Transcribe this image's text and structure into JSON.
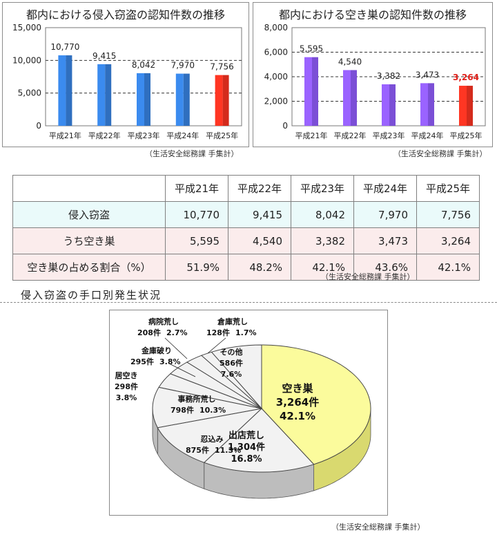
{
  "chart_data": [
    {
      "type": "bar",
      "title": "都内における侵入窃盗の認知件数の推移",
      "categories": [
        "平成21年",
        "平成22年",
        "平成23年",
        "平成24年",
        "平成25年"
      ],
      "values": [
        10770,
        9415,
        8042,
        7970,
        7756
      ],
      "value_labels": [
        "10,770",
        "9,415",
        "8,042",
        "7,970",
        "7,756"
      ],
      "ylim": [
        0,
        15000
      ],
      "yticks": [
        "0",
        "5,000",
        "10,000",
        "15,000"
      ],
      "ytick_values": [
        0,
        5000,
        10000,
        15000
      ],
      "colors": [
        "#2f6fbf",
        "#2f6fbf",
        "#2f6fbf",
        "#2f6fbf",
        "#d42b1c"
      ],
      "grid": true,
      "source": "（生活安全総務課 手集計）"
    },
    {
      "type": "bar",
      "title": "都内における空き巣の認知件数の推移",
      "categories": [
        "平成21年",
        "平成22年",
        "平成23年",
        "平成24年",
        "平成25年"
      ],
      "values": [
        5595,
        4540,
        3382,
        3473,
        3264
      ],
      "value_labels": [
        "5,595",
        "4,540",
        "3,382",
        "3,473",
        "3,264"
      ],
      "ylim": [
        0,
        8000
      ],
      "yticks": [
        "0",
        "2,000",
        "4,000",
        "6,000",
        "8,000"
      ],
      "ytick_values": [
        0,
        2000,
        4000,
        6000,
        8000
      ],
      "colors": [
        "#7b4fd6",
        "#7b4fd6",
        "#7b4fd6",
        "#7b4fd6",
        "#d42b1c"
      ],
      "highlight_label_color": "#e0201a",
      "grid": true,
      "source": "（生活安全総務課 手集計）"
    },
    {
      "type": "table",
      "columns": [
        "",
        "平成21年",
        "平成22年",
        "平成23年",
        "平成24年",
        "平成25年"
      ],
      "rows": [
        {
          "label": "侵入窃盗",
          "cells": [
            "10,770",
            "9,415",
            "8,042",
            "7,970",
            "7,756"
          ]
        },
        {
          "label": "うち空き巣",
          "cells": [
            "5,595",
            "4,540",
            "3,382",
            "3,473",
            "3,264"
          ]
        },
        {
          "label": "空き巣の占める割合（%）",
          "cells": [
            "51.9%",
            "48.2%",
            "42.1%",
            "43.6%",
            "42.1%"
          ]
        }
      ],
      "source": "（生活安全総務課 手集計）"
    },
    {
      "type": "pie",
      "title": "侵入窃盗の手口別発生状況",
      "slices": [
        {
          "name": "空き巣",
          "count": "3,264件",
          "pct": "42.1%",
          "value": 42.1,
          "color": "#fbfb9c"
        },
        {
          "name": "出店荒し",
          "count": "1,304件",
          "pct": "16.8%",
          "value": 16.8,
          "color": "#f2f2f2"
        },
        {
          "name": "忍込み",
          "count": "875件",
          "pct": "11.3%",
          "value": 11.3,
          "color": "#f2f2f2"
        },
        {
          "name": "事務所荒し",
          "count": "798件",
          "pct": "10.3%",
          "value": 10.3,
          "color": "#f2f2f2"
        },
        {
          "name": "居空き",
          "count": "298件",
          "pct": "3.8%",
          "value": 3.8,
          "color": "#f2f2f2"
        },
        {
          "name": "金庫破り",
          "count": "295件",
          "pct": "3.8%",
          "value": 3.8,
          "color": "#f2f2f2"
        },
        {
          "name": "病院荒し",
          "count": "208件",
          "pct": "2.7%",
          "value": 2.7,
          "color": "#f2f2f2"
        },
        {
          "name": "倉庫荒し",
          "count": "128件",
          "pct": "1.7%",
          "value": 1.7,
          "color": "#f2f2f2"
        },
        {
          "name": "その他",
          "count": "586件",
          "pct": "7.6%",
          "value": 7.6,
          "color": "#f2f2f2"
        }
      ],
      "source": "（生活安全総務課 手集計）"
    }
  ]
}
